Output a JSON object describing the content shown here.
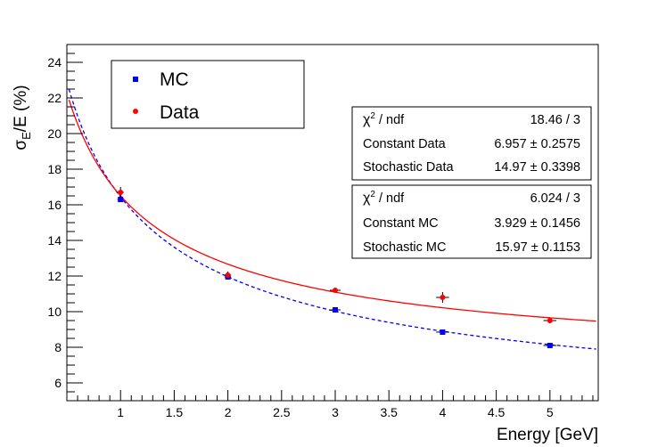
{
  "chart_data": {
    "type": "scatter",
    "title": "",
    "xlabel": "Energy [GeV]",
    "ylabel_main": "σ",
    "ylabel_sub": "E",
    "ylabel_rest": "/E (%)",
    "xlim": [
      0.5,
      5.45
    ],
    "ylim": [
      5.0,
      25.0
    ],
    "x_ticks": [
      1,
      1.5,
      2,
      2.5,
      3,
      3.5,
      4,
      4.5,
      5
    ],
    "x_tick_labels": [
      "1",
      "1.5",
      "2",
      "2.5",
      "3",
      "3.5",
      "4",
      "4.5",
      "5"
    ],
    "y_ticks": [
      6,
      8,
      10,
      12,
      14,
      16,
      18,
      20,
      22,
      24
    ],
    "y_tick_labels": [
      "6",
      "8",
      "10",
      "12",
      "14",
      "16",
      "18",
      "20",
      "22",
      "24"
    ],
    "grid": false,
    "legend_position": "top-left",
    "series": [
      {
        "name": "MC",
        "color": "#0000ff",
        "marker": "square",
        "x": [
          1,
          2,
          3,
          4,
          5
        ],
        "y": [
          16.3,
          11.95,
          10.1,
          8.85,
          8.1
        ],
        "yerr": [
          0.1,
          0.1,
          0.1,
          0.1,
          0.1
        ],
        "xerr": [
          0.03,
          0.03,
          0.05,
          0.06,
          0.06
        ],
        "fit": {
          "constant": 3.929,
          "stochastic": 15.97,
          "style": "dashed"
        }
      },
      {
        "name": "Data",
        "color": "#ff0000",
        "marker": "circle",
        "x": [
          1,
          2,
          3,
          4,
          5
        ],
        "y": [
          16.7,
          12.05,
          11.2,
          10.8,
          9.5
        ],
        "yerr": [
          0.3,
          0.2,
          0.15,
          0.3,
          0.15
        ],
        "xerr": [
          0.03,
          0.03,
          0.05,
          0.06,
          0.06
        ],
        "fit": {
          "constant": 6.957,
          "stochastic": 14.97,
          "style": "solid"
        }
      }
    ],
    "stat_boxes": [
      {
        "rows": [
          {
            "label_main": "χ",
            "label_sup": "2",
            "label_rest": " / ndf",
            "value": "18.46 / 3"
          },
          {
            "label_main": "Constant Data",
            "value": "6.957 ± 0.2575"
          },
          {
            "label_main": "Stochastic Data",
            "value": "14.97 ± 0.3398"
          }
        ]
      },
      {
        "rows": [
          {
            "label_main": "χ",
            "label_sup": "2",
            "label_rest": " / ndf",
            "value": "6.024 / 3"
          },
          {
            "label_main": "Constant MC",
            "value": "3.929 ± 0.1456"
          },
          {
            "label_main": "Stochastic MC",
            "value": "15.97 ± 0.1153"
          }
        ]
      }
    ]
  }
}
